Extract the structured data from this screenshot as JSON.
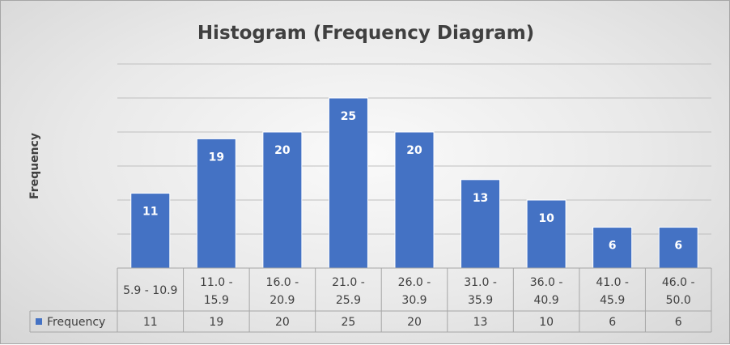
{
  "chart_data": {
    "type": "bar",
    "title": "Histogram (Frequency Diagram)",
    "xlabel": "",
    "ylabel": "Frequency",
    "categories": [
      "5.9 - 10.9",
      "11.0 - 15.9",
      "16.0 - 20.9",
      "21.0 - 25.9",
      "26.0 - 30.9",
      "31.0 - 35.9",
      "36.0 - 40.9",
      "41.0 - 45.9",
      "46.0 - 50.0"
    ],
    "series": [
      {
        "name": "Frequency",
        "values": [
          11,
          19,
          20,
          25,
          20,
          13,
          10,
          6,
          6
        ],
        "color": "#4472c4"
      }
    ],
    "ylim": [
      0,
      30
    ],
    "grid": true,
    "legend": "data-table",
    "data_labels": true,
    "data_table": true
  }
}
